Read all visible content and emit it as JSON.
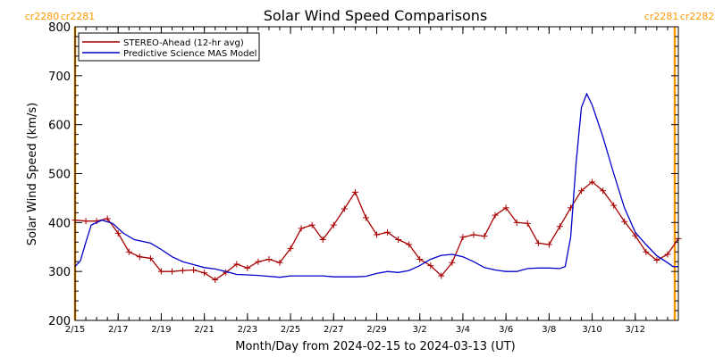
{
  "chart_data": {
    "type": "line",
    "title": "Solar Wind Speed Comparisons",
    "xlabel": "Month/Day from 2024-02-15 to 2024-03-13 (UT)",
    "ylabel": "Solar Wind Speed (km/s)",
    "xlim": [
      "2024-02-15",
      "2024-03-14"
    ],
    "ylim": [
      200,
      800
    ],
    "yticks": [
      200,
      300,
      400,
      500,
      600,
      700,
      800
    ],
    "xticks": [
      {
        "date": "2024-02-15",
        "label": "2/15"
      },
      {
        "date": "2024-02-17",
        "label": "2/17"
      },
      {
        "date": "2024-02-19",
        "label": "2/19"
      },
      {
        "date": "2024-02-21",
        "label": "2/21"
      },
      {
        "date": "2024-02-23",
        "label": "2/23"
      },
      {
        "date": "2024-02-25",
        "label": "2/25"
      },
      {
        "date": "2024-02-27",
        "label": "2/27"
      },
      {
        "date": "2024-02-29",
        "label": "2/29"
      },
      {
        "date": "2024-03-02",
        "label": "3/2"
      },
      {
        "date": "2024-03-04",
        "label": "3/4"
      },
      {
        "date": "2024-03-06",
        "label": "3/6"
      },
      {
        "date": "2024-03-08",
        "label": "3/8"
      },
      {
        "date": "2024-03-10",
        "label": "3/10"
      },
      {
        "date": "2024-03-12",
        "label": "3/12"
      }
    ],
    "grid": false,
    "legend_position": "top-left",
    "carrington_markers": [
      {
        "date": "2024-02-15",
        "left_label": "cr2280",
        "right_label": "cr2281",
        "label_side": "left"
      },
      {
        "date": "2024-03-13 20:00",
        "left_label": "cr2281",
        "right_label": "cr2282",
        "label_side": "right"
      }
    ],
    "colors": {
      "stereo": "#aa0000",
      "mas": "#0000cc",
      "marker": "#ff9900",
      "axis": "#000000"
    },
    "series": [
      {
        "name": "STEREO-Ahead (12-hr avg)",
        "color": "#aa0000",
        "marker": "plus",
        "points": [
          [
            "2024-02-15 00:00",
            405
          ],
          [
            "2024-02-15 12:00",
            403
          ],
          [
            "2024-02-16 00:00",
            403
          ],
          [
            "2024-02-16 12:00",
            408
          ],
          [
            "2024-02-17 00:00",
            378
          ],
          [
            "2024-02-17 12:00",
            340
          ],
          [
            "2024-02-18 00:00",
            330
          ],
          [
            "2024-02-18 12:00",
            327
          ],
          [
            "2024-02-19 00:00",
            300
          ],
          [
            "2024-02-19 12:00",
            300
          ],
          [
            "2024-02-20 00:00",
            302
          ],
          [
            "2024-02-20 12:00",
            303
          ],
          [
            "2024-02-21 00:00",
            297
          ],
          [
            "2024-02-21 12:00",
            283
          ],
          [
            "2024-02-22 00:00",
            298
          ],
          [
            "2024-02-22 12:00",
            315
          ],
          [
            "2024-02-23 00:00",
            307
          ],
          [
            "2024-02-23 12:00",
            320
          ],
          [
            "2024-02-24 00:00",
            325
          ],
          [
            "2024-02-24 12:00",
            318
          ],
          [
            "2024-02-25 00:00",
            347
          ],
          [
            "2024-02-25 12:00",
            388
          ],
          [
            "2024-02-26 00:00",
            395
          ],
          [
            "2024-02-26 12:00",
            365
          ],
          [
            "2024-02-27 00:00",
            395
          ],
          [
            "2024-02-27 12:00",
            428
          ],
          [
            "2024-02-28 00:00",
            462
          ],
          [
            "2024-02-28 12:00",
            410
          ],
          [
            "2024-02-29 00:00",
            375
          ],
          [
            "2024-02-29 12:00",
            380
          ],
          [
            "2024-03-01 00:00",
            365
          ],
          [
            "2024-03-01 12:00",
            355
          ],
          [
            "2024-03-02 00:00",
            325
          ],
          [
            "2024-03-02 12:00",
            312
          ],
          [
            "2024-03-03 00:00",
            291
          ],
          [
            "2024-03-03 12:00",
            318
          ],
          [
            "2024-03-04 00:00",
            370
          ],
          [
            "2024-03-04 12:00",
            375
          ],
          [
            "2024-03-05 00:00",
            372
          ],
          [
            "2024-03-05 12:00",
            415
          ],
          [
            "2024-03-06 00:00",
            430
          ],
          [
            "2024-03-06 12:00",
            400
          ],
          [
            "2024-03-07 00:00",
            398
          ],
          [
            "2024-03-07 12:00",
            358
          ],
          [
            "2024-03-08 00:00",
            355
          ],
          [
            "2024-03-08 12:00",
            392
          ],
          [
            "2024-03-09 00:00",
            430
          ],
          [
            "2024-03-09 12:00",
            465
          ],
          [
            "2024-03-10 00:00",
            483
          ],
          [
            "2024-03-10 12:00",
            465
          ],
          [
            "2024-03-11 00:00",
            435
          ],
          [
            "2024-03-11 12:00",
            402
          ],
          [
            "2024-03-12 00:00",
            373
          ],
          [
            "2024-03-12 12:00",
            340
          ],
          [
            "2024-03-13 00:00",
            323
          ],
          [
            "2024-03-13 12:00",
            335
          ],
          [
            "2024-03-14 00:00",
            367
          ]
        ]
      },
      {
        "name": "Predictive Science MAS Model",
        "color": "#0000cc",
        "marker": "none",
        "points": [
          [
            "2024-02-15 00:00",
            310
          ],
          [
            "2024-02-15 06:00",
            322
          ],
          [
            "2024-02-15 12:00",
            360
          ],
          [
            "2024-02-15 18:00",
            395
          ],
          [
            "2024-02-16 06:00",
            405
          ],
          [
            "2024-02-16 18:00",
            398
          ],
          [
            "2024-02-17 06:00",
            378
          ],
          [
            "2024-02-17 18:00",
            365
          ],
          [
            "2024-02-18 12:00",
            358
          ],
          [
            "2024-02-19 00:00",
            345
          ],
          [
            "2024-02-19 12:00",
            330
          ],
          [
            "2024-02-20 00:00",
            320
          ],
          [
            "2024-02-20 12:00",
            314
          ],
          [
            "2024-02-21 00:00",
            308
          ],
          [
            "2024-02-21 12:00",
            305
          ],
          [
            "2024-02-22 00:00",
            300
          ],
          [
            "2024-02-22 12:00",
            294
          ],
          [
            "2024-02-23 00:00",
            293
          ],
          [
            "2024-02-23 12:00",
            292
          ],
          [
            "2024-02-24 00:00",
            290
          ],
          [
            "2024-02-24 12:00",
            288
          ],
          [
            "2024-02-25 00:00",
            291
          ],
          [
            "2024-02-25 12:00",
            291
          ],
          [
            "2024-02-26 00:00",
            291
          ],
          [
            "2024-02-26 12:00",
            291
          ],
          [
            "2024-02-27 00:00",
            289
          ],
          [
            "2024-02-27 12:00",
            289
          ],
          [
            "2024-02-28 00:00",
            289
          ],
          [
            "2024-02-28 12:00",
            290
          ],
          [
            "2024-02-29 00:00",
            296
          ],
          [
            "2024-02-29 12:00",
            300
          ],
          [
            "2024-03-01 00:00",
            298
          ],
          [
            "2024-03-01 12:00",
            302
          ],
          [
            "2024-03-02 00:00",
            312
          ],
          [
            "2024-03-02 12:00",
            325
          ],
          [
            "2024-03-03 00:00",
            333
          ],
          [
            "2024-03-03 12:00",
            335
          ],
          [
            "2024-03-04 00:00",
            330
          ],
          [
            "2024-03-04 12:00",
            320
          ],
          [
            "2024-03-05 00:00",
            308
          ],
          [
            "2024-03-05 12:00",
            303
          ],
          [
            "2024-03-06 00:00",
            300
          ],
          [
            "2024-03-06 12:00",
            300
          ],
          [
            "2024-03-07 00:00",
            306
          ],
          [
            "2024-03-07 12:00",
            307
          ],
          [
            "2024-03-08 00:00",
            307
          ],
          [
            "2024-03-08 12:00",
            306
          ],
          [
            "2024-03-08 18:00",
            310
          ],
          [
            "2024-03-09 00:00",
            370
          ],
          [
            "2024-03-09 06:00",
            520
          ],
          [
            "2024-03-09 12:00",
            635
          ],
          [
            "2024-03-09 18:00",
            663
          ],
          [
            "2024-03-10 00:00",
            640
          ],
          [
            "2024-03-10 12:00",
            575
          ],
          [
            "2024-03-11 00:00",
            500
          ],
          [
            "2024-03-11 12:00",
            430
          ],
          [
            "2024-03-12 00:00",
            380
          ],
          [
            "2024-03-12 12:00",
            355
          ],
          [
            "2024-03-13 00:00",
            332
          ],
          [
            "2024-03-13 12:00",
            318
          ],
          [
            "2024-03-13 18:00",
            310
          ],
          [
            "2024-03-14 00:00",
            310
          ]
        ]
      }
    ]
  }
}
